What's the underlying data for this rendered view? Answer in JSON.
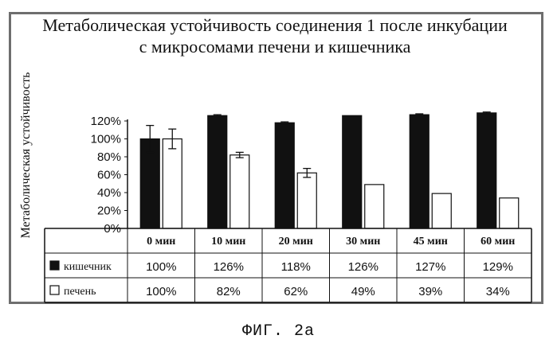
{
  "chart_data": {
    "type": "bar",
    "title": "Метаболическая устойчивость соединения 1 после инкубации с микросомами печени и кишечника",
    "title_lines": [
      "Метаболическая устойчивость соединения 1 после инкубации",
      "с микросомами печени и кишечника"
    ],
    "xlabel": "",
    "ylabel": "Метаболическая устойчивость",
    "ylim": [
      0,
      120
    ],
    "yticks": [
      "0%",
      "20%",
      "40%",
      "60%",
      "80%",
      "100%",
      "120%"
    ],
    "categories": [
      "0 мин",
      "10 мин",
      "20 мин",
      "30 мин",
      "45 мин",
      "60 мин"
    ],
    "series": [
      {
        "name": "кишечник",
        "color": "#111111",
        "values": [
          100,
          126,
          118,
          126,
          127,
          129
        ],
        "labels": [
          "100%",
          "126%",
          "118%",
          "126%",
          "127%",
          "129%"
        ],
        "error": [
          15,
          1,
          1,
          0,
          1,
          1
        ]
      },
      {
        "name": "печень",
        "color": "#ffffff",
        "values": [
          100,
          82,
          62,
          49,
          39,
          34
        ],
        "labels": [
          "100%",
          "82%",
          "62%",
          "49%",
          "39%",
          "34%"
        ],
        "error": [
          11,
          3,
          5,
          0,
          0,
          0
        ]
      }
    ],
    "legend": "data-table",
    "grid": false
  },
  "caption": "ФИГ. 2а"
}
